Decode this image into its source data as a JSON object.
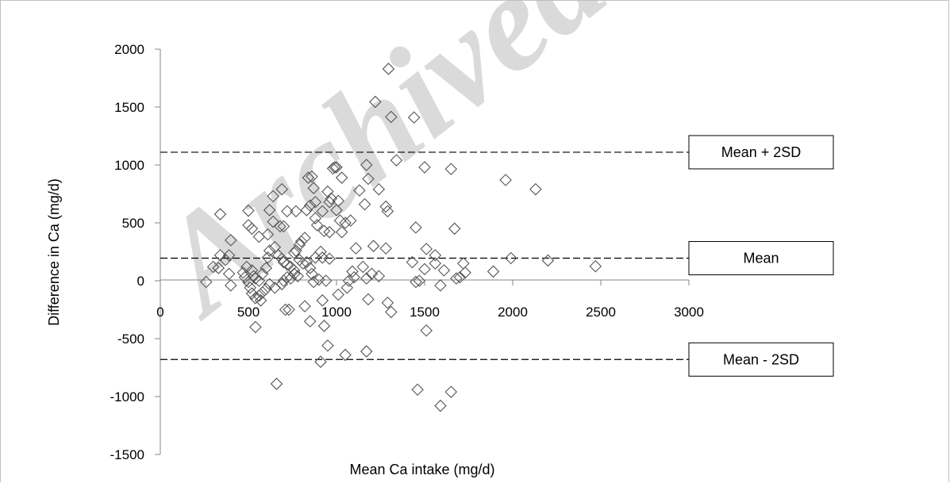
{
  "watermark": "Archived",
  "chart_data": {
    "type": "scatter",
    "xlabel": "Mean Ca intake (mg/d)",
    "ylabel": "Difference in Ca (mg/d)",
    "xlim": [
      0,
      3000
    ],
    "ylim": [
      -1500,
      2000
    ],
    "xticks": [
      0,
      500,
      1000,
      1500,
      2000,
      2500,
      3000
    ],
    "yticks": [
      -1500,
      -1000,
      -500,
      0,
      500,
      1000,
      1500,
      2000
    ],
    "marker": "open-diamond",
    "grid": false,
    "reference_lines": [
      {
        "label": "Mean + 2SD",
        "y": 1110
      },
      {
        "label": "Mean",
        "y": 195
      },
      {
        "label": "Mean - 2SD",
        "y": -680
      }
    ],
    "points": [
      [
        1220,
        1545
      ],
      [
        1295,
        1830
      ],
      [
        1310,
        1415
      ],
      [
        1440,
        1410
      ],
      [
        1340,
        1040
      ],
      [
        1500,
        980
      ],
      [
        1650,
        965
      ],
      [
        1960,
        870
      ],
      [
        2130,
        790
      ],
      [
        1990,
        195
      ],
      [
        2200,
        175
      ],
      [
        2470,
        125
      ],
      [
        1890,
        80
      ],
      [
        340,
        575
      ],
      [
        500,
        605
      ],
      [
        640,
        730
      ],
      [
        690,
        790
      ],
      [
        720,
        600
      ],
      [
        840,
        890
      ],
      [
        920,
        600
      ],
      [
        990,
        980
      ],
      [
        1030,
        890
      ],
      [
        1170,
        1000
      ],
      [
        1180,
        880
      ],
      [
        1130,
        780
      ],
      [
        1240,
        790
      ],
      [
        1290,
        600
      ],
      [
        1280,
        640
      ],
      [
        1450,
        460
      ],
      [
        1670,
        450
      ],
      [
        1510,
        275
      ],
      [
        1430,
        160
      ],
      [
        1500,
        100
      ],
      [
        1560,
        220
      ],
      [
        1560,
        150
      ],
      [
        1610,
        90
      ],
      [
        1680,
        20
      ],
      [
        1700,
        30
      ],
      [
        1720,
        150
      ],
      [
        1730,
        70
      ],
      [
        1590,
        -40
      ],
      [
        1470,
        0
      ],
      [
        1450,
        -10
      ],
      [
        1290,
        -190
      ],
      [
        1310,
        -270
      ],
      [
        1510,
        -430
      ],
      [
        1460,
        -940
      ],
      [
        1590,
        -1080
      ],
      [
        1650,
        -960
      ],
      [
        1170,
        -610
      ],
      [
        1050,
        -640
      ],
      [
        950,
        -560
      ],
      [
        910,
        -700
      ],
      [
        660,
        -890
      ],
      [
        540,
        -400
      ],
      [
        710,
        -250
      ],
      [
        730,
        -250
      ],
      [
        820,
        -220
      ],
      [
        850,
        -350
      ],
      [
        930,
        -390
      ],
      [
        920,
        -170
      ],
      [
        1010,
        -120
      ],
      [
        1060,
        -60
      ],
      [
        1180,
        -160
      ],
      [
        1280,
        280
      ],
      [
        1210,
        300
      ],
      [
        1200,
        60
      ],
      [
        1240,
        40
      ],
      [
        1170,
        20
      ],
      [
        1090,
        80
      ],
      [
        1100,
        30
      ],
      [
        1070,
        0
      ],
      [
        1150,
        120
      ],
      [
        1160,
        660
      ],
      [
        1110,
        280
      ],
      [
        1050,
        500
      ],
      [
        1080,
        520
      ],
      [
        1030,
        420
      ],
      [
        1020,
        520
      ],
      [
        1000,
        610
      ],
      [
        1010,
        690
      ],
      [
        970,
        710
      ],
      [
        960,
        680
      ],
      [
        950,
        770
      ],
      [
        980,
        970
      ],
      [
        860,
        900
      ],
      [
        870,
        800
      ],
      [
        880,
        680
      ],
      [
        850,
        650
      ],
      [
        880,
        540
      ],
      [
        890,
        480
      ],
      [
        930,
        430
      ],
      [
        960,
        420
      ],
      [
        910,
        250
      ],
      [
        920,
        200
      ],
      [
        960,
        190
      ],
      [
        880,
        200
      ],
      [
        820,
        370
      ],
      [
        800,
        340
      ],
      [
        790,
        310
      ],
      [
        770,
        260
      ],
      [
        760,
        240
      ],
      [
        790,
        180
      ],
      [
        810,
        150
      ],
      [
        830,
        160
      ],
      [
        850,
        110
      ],
      [
        860,
        60
      ],
      [
        900,
        10
      ],
      [
        940,
        0
      ],
      [
        870,
        -10
      ],
      [
        780,
        40
      ],
      [
        760,
        60
      ],
      [
        740,
        20
      ],
      [
        720,
        30
      ],
      [
        700,
        0
      ],
      [
        690,
        -30
      ],
      [
        650,
        -60
      ],
      [
        620,
        -30
      ],
      [
        600,
        -70
      ],
      [
        580,
        -100
      ],
      [
        570,
        -170
      ],
      [
        560,
        -130
      ],
      [
        540,
        -150
      ],
      [
        520,
        -110
      ],
      [
        510,
        -60
      ],
      [
        500,
        -10
      ],
      [
        480,
        30
      ],
      [
        470,
        70
      ],
      [
        490,
        120
      ],
      [
        520,
        90
      ],
      [
        530,
        40
      ],
      [
        540,
        20
      ],
      [
        560,
        0
      ],
      [
        580,
        60
      ],
      [
        600,
        110
      ],
      [
        610,
        200
      ],
      [
        620,
        260
      ],
      [
        650,
        290
      ],
      [
        670,
        220
      ],
      [
        690,
        190
      ],
      [
        700,
        160
      ],
      [
        720,
        140
      ],
      [
        740,
        120
      ],
      [
        760,
        90
      ],
      [
        700,
        470
      ],
      [
        680,
        470
      ],
      [
        640,
        510
      ],
      [
        610,
        400
      ],
      [
        560,
        380
      ],
      [
        520,
        450
      ],
      [
        500,
        480
      ],
      [
        400,
        350
      ],
      [
        390,
        220
      ],
      [
        370,
        180
      ],
      [
        340,
        220
      ],
      [
        330,
        110
      ],
      [
        300,
        120
      ],
      [
        260,
        -10
      ],
      [
        390,
        60
      ],
      [
        400,
        -40
      ],
      [
        620,
        610
      ],
      [
        770,
        600
      ],
      [
        830,
        610
      ],
      [
        1000,
        980
      ]
    ]
  }
}
